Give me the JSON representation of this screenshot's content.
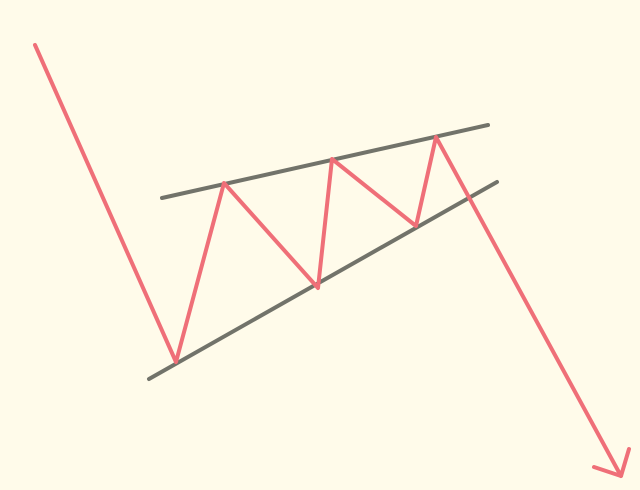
{
  "diagram": {
    "background_color": "#fffbea",
    "trendline_color": "#72736a",
    "price_color": "#ef6f78",
    "elements": [
      "upper-resistance-trendline",
      "lower-support-trendline",
      "price-path-line",
      "breakdown-arrowhead-icon"
    ]
  }
}
